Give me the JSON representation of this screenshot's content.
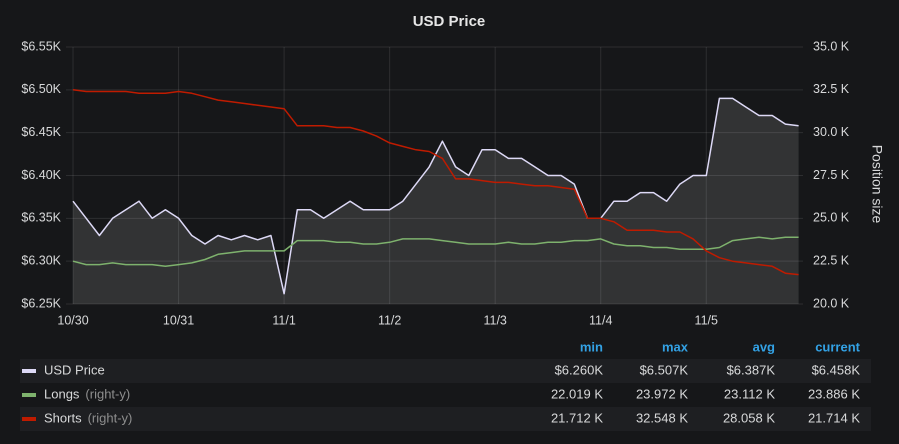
{
  "chart_data": {
    "type": "line",
    "title": "USD Price",
    "y2_label": "Position size",
    "x": [
      0,
      3,
      6,
      9,
      12,
      15,
      18,
      21,
      24,
      27,
      30,
      33,
      36,
      39,
      42,
      45,
      48,
      51,
      54,
      57,
      60,
      63,
      66,
      69,
      72,
      75,
      78,
      81,
      84,
      87,
      90,
      93,
      96,
      99,
      102,
      105,
      108,
      111,
      114,
      117,
      120,
      123,
      126,
      129,
      132,
      135,
      138,
      141,
      144,
      147,
      150,
      153,
      156,
      159,
      162,
      165
    ],
    "xlim": [
      -1.6,
      166
    ],
    "xticks": [
      {
        "value": 0,
        "label": "10/30"
      },
      {
        "value": 24,
        "label": "10/31"
      },
      {
        "value": 48,
        "label": "11/1"
      },
      {
        "value": 72,
        "label": "11/2"
      },
      {
        "value": 96,
        "label": "11/3"
      },
      {
        "value": 120,
        "label": "11/4"
      },
      {
        "value": 144,
        "label": "11/5"
      }
    ],
    "ylim": [
      6250,
      6550
    ],
    "yticks": [
      {
        "value": 6250,
        "label": "$6.25K"
      },
      {
        "value": 6300,
        "label": "$6.30K"
      },
      {
        "value": 6350,
        "label": "$6.35K"
      },
      {
        "value": 6400,
        "label": "$6.40K"
      },
      {
        "value": 6450,
        "label": "$6.45K"
      },
      {
        "value": 6500,
        "label": "$6.50K"
      },
      {
        "value": 6550,
        "label": "$6.55K"
      }
    ],
    "y2lim": [
      20000,
      35000
    ],
    "y2ticks": [
      {
        "value": 20000,
        "label": "20.0 K"
      },
      {
        "value": 22500,
        "label": "22.5 K"
      },
      {
        "value": 25000,
        "label": "25.0 K"
      },
      {
        "value": 27500,
        "label": "27.5 K"
      },
      {
        "value": 30000,
        "label": "30.0 K"
      },
      {
        "value": 32500,
        "label": "32.5 K"
      },
      {
        "value": 35000,
        "label": "35.0 K"
      }
    ],
    "grid": true,
    "legend_columns": [
      "min",
      "max",
      "avg",
      "current"
    ],
    "series": [
      {
        "name": "USD Price",
        "color": "#ddd9f6",
        "fill": true,
        "values": [
          6370,
          6350,
          6330,
          6350,
          6360,
          6370,
          6350,
          6360,
          6350,
          6330,
          6320,
          6330,
          6325,
          6330,
          6325,
          6330,
          6262,
          6360,
          6360,
          6350,
          6360,
          6370,
          6360,
          6360,
          6360,
          6370,
          6390,
          6410,
          6440,
          6410,
          6400,
          6430,
          6430,
          6420,
          6420,
          6410,
          6400,
          6400,
          6390,
          6350,
          6350,
          6370,
          6370,
          6380,
          6380,
          6370,
          6390,
          6400,
          6400,
          6490,
          6490,
          6480,
          6470,
          6470,
          6460,
          6458
        ],
        "legend_values": [
          "$6.260K",
          "$6.507K",
          "$6.387K",
          "$6.458K"
        ]
      },
      {
        "name": "Longs",
        "legend_note": "(right-y)",
        "axis": "y2",
        "color": "#7eb26d",
        "values": [
          22500,
          22300,
          22300,
          22400,
          22300,
          22300,
          22300,
          22200,
          22300,
          22400,
          22600,
          22900,
          23000,
          23100,
          23100,
          23100,
          23100,
          23700,
          23700,
          23700,
          23600,
          23600,
          23500,
          23500,
          23600,
          23800,
          23800,
          23800,
          23700,
          23600,
          23500,
          23500,
          23500,
          23600,
          23500,
          23500,
          23600,
          23600,
          23700,
          23700,
          23800,
          23500,
          23400,
          23400,
          23300,
          23300,
          23200,
          23200,
          23200,
          23300,
          23700,
          23800,
          23900,
          23800,
          23900,
          23900
        ],
        "legend_values": [
          "22.019 K",
          "23.972 K",
          "23.112 K",
          "23.886 K"
        ]
      },
      {
        "name": "Shorts",
        "legend_note": "(right-y)",
        "axis": "y2",
        "color": "#bf1b00",
        "values": [
          32500,
          32400,
          32400,
          32400,
          32400,
          32300,
          32300,
          32300,
          32400,
          32300,
          32100,
          31900,
          31800,
          31700,
          31600,
          31500,
          31400,
          30400,
          30400,
          30400,
          30300,
          30300,
          30100,
          29800,
          29400,
          29200,
          29000,
          28900,
          28500,
          27300,
          27300,
          27200,
          27100,
          27100,
          27000,
          26900,
          26900,
          26800,
          26700,
          25000,
          25000,
          24800,
          24300,
          24300,
          24300,
          24200,
          24200,
          23800,
          23100,
          22700,
          22500,
          22400,
          22300,
          22200,
          21800,
          21714
        ],
        "legend_values": [
          "21.712 K",
          "32.548 K",
          "28.058 K",
          "21.714 K"
        ]
      }
    ]
  }
}
